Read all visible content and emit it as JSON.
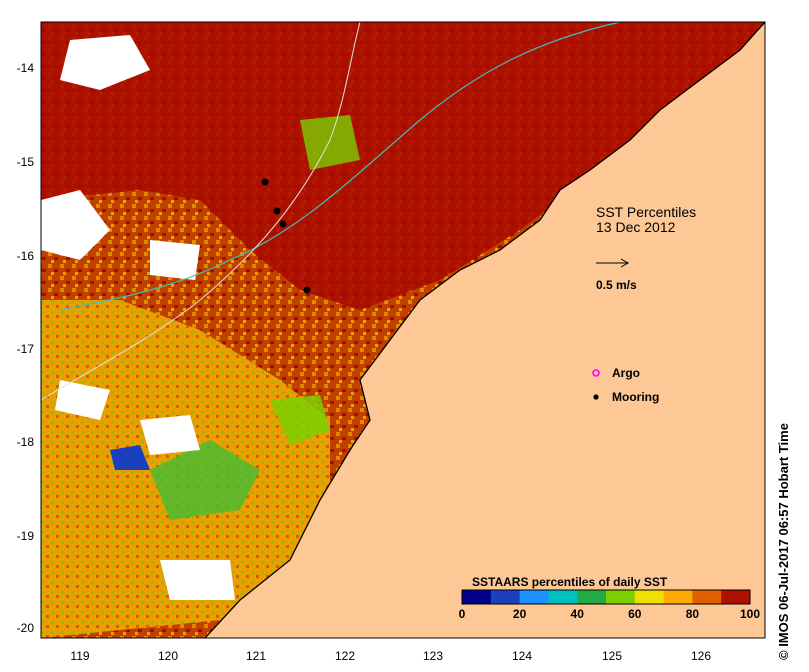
{
  "map": {
    "title_line1": "SST Percentiles",
    "title_line2": "13 Dec 2012",
    "scale_arrow_label": "0.5 m/s",
    "lon_ticks": [
      "119",
      "120",
      "121",
      "122",
      "123",
      "124",
      "125",
      "126"
    ],
    "lat_ticks": [
      "-14",
      "-15",
      "-16",
      "-17",
      "-18",
      "-19",
      "-20"
    ],
    "legend": {
      "argo_label": "Argo",
      "mooring_label": "Mooring",
      "argo_color": "#ff00ff",
      "mooring_color": "#000000"
    },
    "colorbar": {
      "title": "SSTAARS percentiles of daily SST",
      "tick_labels": [
        "0",
        "20",
        "40",
        "60",
        "80",
        "100"
      ],
      "colors": [
        "#00008b",
        "#1a3fbf",
        "#1e90ff",
        "#00bfbf",
        "#22aa44",
        "#7cd000",
        "#f0e000",
        "#ffaa00",
        "#e06000",
        "#b01000"
      ]
    },
    "land_color": "#fdc896",
    "credit": "© IMOS 06-Jul-2017 06:57 Hobart Time"
  }
}
